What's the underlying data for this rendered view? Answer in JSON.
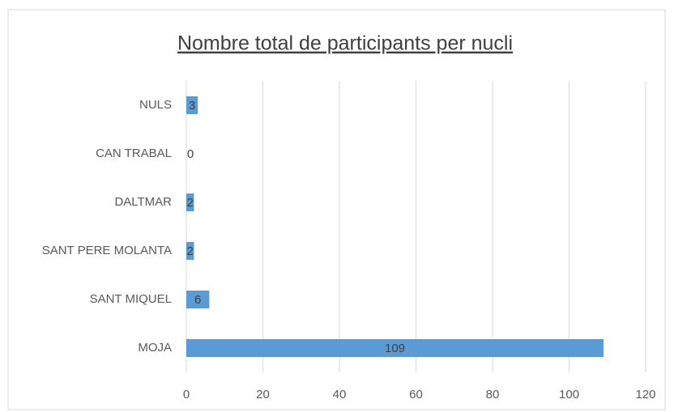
{
  "chart_data": {
    "type": "hbar",
    "title": "Nombre total de participants per nucli",
    "categories": [
      "NULS",
      "CAN TRABAL",
      "DALTMAR",
      "SANT PERE MOLANTA",
      "SANT MIQUEL",
      "MOJA"
    ],
    "values": [
      3,
      0,
      2,
      2,
      6,
      109
    ],
    "color": "#5b9bd5",
    "xlim": [
      0,
      120
    ],
    "xticks": [
      0,
      20,
      40,
      60,
      80,
      100,
      120
    ],
    "grid": true
  }
}
